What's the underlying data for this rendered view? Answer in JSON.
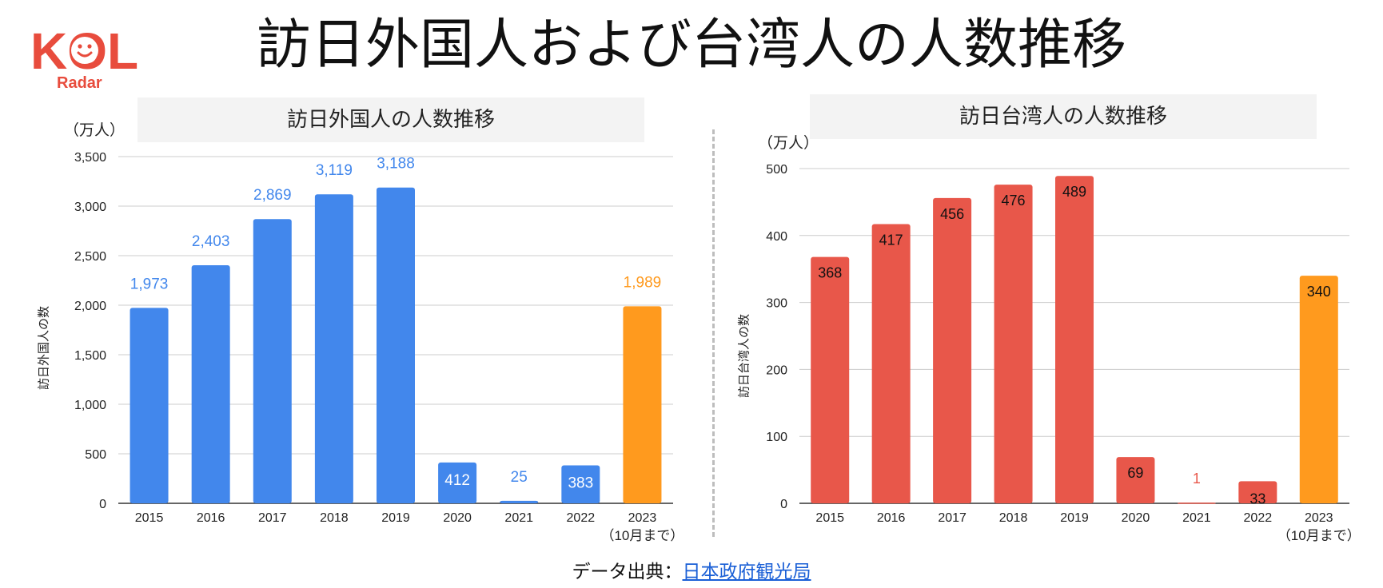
{
  "logo": {
    "text": "KOL",
    "sub": "Radar",
    "color": "#e84c3d"
  },
  "main_title": "訪日外国人および台湾人の人数推移",
  "source": {
    "prefix": "データ出典：",
    "link_text": "日本政府観光局"
  },
  "chart_data": [
    {
      "type": "bar",
      "title": "訪日外国人の人数推移",
      "unit": "（万人）",
      "ylabel": "訪日外国人の数",
      "categories": [
        "2015",
        "2016",
        "2017",
        "2018",
        "2019",
        "2020",
        "2021",
        "2022",
        "2023"
      ],
      "category_sub": {
        "2023": "（10月まで）"
      },
      "values": [
        1973,
        2403,
        2869,
        3119,
        3188,
        412,
        25,
        383,
        1989
      ],
      "labels": [
        "1,973",
        "2,403",
        "2,869",
        "3,119",
        "3,188",
        "412",
        "25",
        "383",
        "1,989"
      ],
      "ylim": [
        0,
        3500
      ],
      "yticks": [
        "0",
        "500",
        "1,000",
        "1,500",
        "2,000",
        "2,500",
        "3,000",
        "3,500"
      ],
      "ytick_values": [
        0,
        500,
        1000,
        1500,
        2000,
        2500,
        3000,
        3500
      ],
      "bar_color": "#4287ec",
      "highlight_color": "#ff9a1e",
      "highlight_index": 8,
      "grid": true
    },
    {
      "type": "bar",
      "title": "訪日台湾人の人数推移",
      "unit": "（万人）",
      "ylabel": "訪日台湾人の数",
      "categories": [
        "2015",
        "2016",
        "2017",
        "2018",
        "2019",
        "2020",
        "2021",
        "2022",
        "2023"
      ],
      "category_sub": {
        "2023": "（10月まで）"
      },
      "values": [
        368,
        417,
        456,
        476,
        489,
        69,
        1,
        33,
        340
      ],
      "labels": [
        "368",
        "417",
        "456",
        "476",
        "489",
        "69",
        "1",
        "33",
        "340"
      ],
      "ylim": [
        0,
        500
      ],
      "yticks": [
        "0",
        "100",
        "200",
        "300",
        "400",
        "500"
      ],
      "ytick_values": [
        0,
        100,
        200,
        300,
        400,
        500
      ],
      "bar_color": "#e8574a",
      "highlight_color": "#ff9a1e",
      "highlight_index": 8,
      "grid": true
    }
  ]
}
